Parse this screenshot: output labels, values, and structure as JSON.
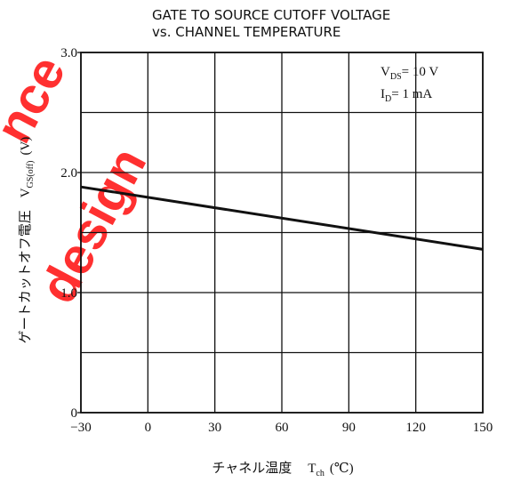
{
  "chart_data": {
    "type": "line",
    "title": "GATE TO SOURCE CUTOFF VOLTAGE",
    "subtitle": "vs. CHANNEL TEMPERATURE",
    "xlabel": "チャネル温度",
    "xlabel_symbol": "T",
    "xlabel_symbol_sub": "ch",
    "xlabel_unit": "(℃)",
    "ylabel": "ゲートカットオフ電圧",
    "ylabel_symbol": "V",
    "ylabel_symbol_sub": "GS(off)",
    "ylabel_unit": "(V)",
    "xlim": [
      -30,
      150
    ],
    "ylim": [
      0,
      3.0
    ],
    "x_ticks": [
      -30,
      0,
      30,
      60,
      90,
      120,
      150
    ],
    "x_tick_labels": [
      "−30",
      "0",
      "30",
      "60",
      "90",
      "120",
      "150"
    ],
    "y_ticks": [
      0,
      1.0,
      2.0,
      3.0
    ],
    "y_tick_labels": [
      "0",
      "1.0",
      "2.0",
      "3.0"
    ],
    "y_grid_step": 0.5,
    "grid": true,
    "conditions": [
      {
        "symbol": "V",
        "sub": "DS",
        "text": "= 10  V"
      },
      {
        "symbol": "I",
        "sub": "D",
        "text": "= 1  mA"
      }
    ],
    "conditions_placement": "top-right",
    "series": [
      {
        "x": [
          -30,
          150
        ],
        "y": [
          1.88,
          1.36
        ]
      }
    ]
  },
  "watermark": {
    "lines": [
      "nce",
      "design"
    ],
    "color": "#ff1a1a"
  }
}
